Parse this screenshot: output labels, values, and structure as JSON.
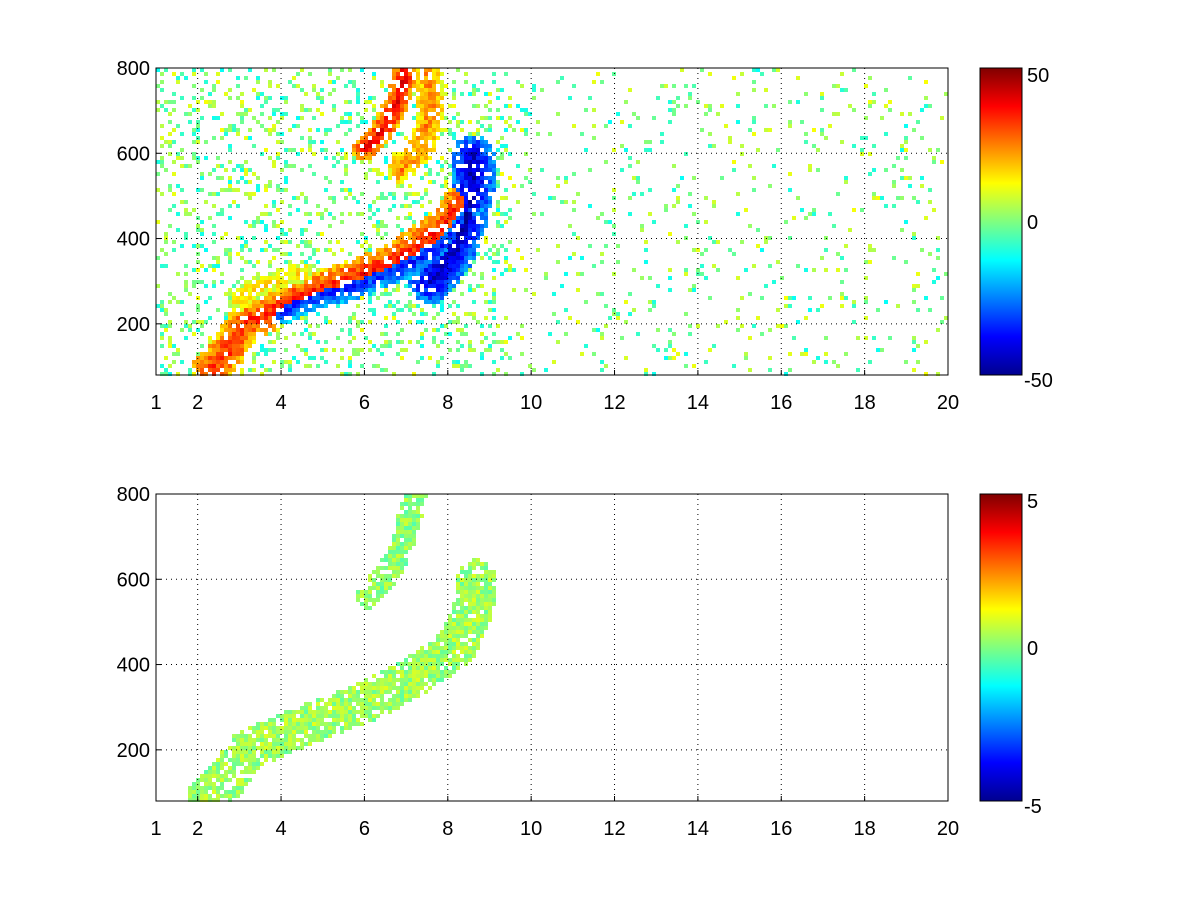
{
  "chart_data": [
    {
      "type": "heatmap",
      "colormap": "jet",
      "colorbar": {
        "range": [
          -50,
          50
        ],
        "ticks": [
          "50",
          "0",
          "-50"
        ]
      },
      "xlim": [
        1,
        20
      ],
      "ylim": [
        80,
        800
      ],
      "x_ticks": [
        "1",
        "2",
        "4",
        "6",
        "8",
        "10",
        "12",
        "14",
        "16",
        "18",
        "20"
      ],
      "y_ticks": [
        "200",
        "400",
        "600",
        "800"
      ],
      "grid": true,
      "features": [
        {
          "kind": "ridge",
          "points": [
            [
              2.3,
              95
            ],
            [
              2.7,
              130
            ],
            [
              3.1,
              200
            ],
            [
              3.6,
              220
            ],
            [
              4.2,
              255
            ],
            [
              5.0,
              285
            ],
            [
              5.8,
              310
            ],
            [
              6.5,
              340
            ],
            [
              7.2,
              380
            ],
            [
              7.8,
              420
            ],
            [
              8.3,
              480
            ]
          ],
          "value": 35,
          "width": 18
        },
        {
          "kind": "ridge",
          "points": [
            [
              4.0,
              230
            ],
            [
              4.8,
              265
            ],
            [
              5.6,
              285
            ],
            [
              6.4,
              315
            ],
            [
              7.2,
              345
            ],
            [
              7.8,
              380
            ],
            [
              8.2,
              420
            ],
            [
              8.5,
              470
            ]
          ],
          "value": -35,
          "width": 14
        },
        {
          "kind": "ridge",
          "points": [
            [
              7.6,
              300
            ],
            [
              8.1,
              360
            ],
            [
              8.4,
              440
            ],
            [
              8.6,
              520
            ],
            [
              8.6,
              590
            ]
          ],
          "value": -45,
          "width": 22
        },
        {
          "kind": "ridge",
          "points": [
            [
              6.9,
              560
            ],
            [
              7.4,
              620
            ],
            [
              7.6,
              700
            ],
            [
              7.5,
              800
            ]
          ],
          "value": 25,
          "width": 14
        },
        {
          "kind": "ridge",
          "points": [
            [
              6.0,
              610
            ],
            [
              6.4,
              650
            ],
            [
              6.8,
              720
            ],
            [
              7.0,
              800
            ]
          ],
          "value": 40,
          "width": 12
        },
        {
          "kind": "ridge",
          "points": [
            [
              3.0,
              250
            ],
            [
              3.3,
              280
            ],
            [
              3.8,
              300
            ],
            [
              4.5,
              320
            ]
          ],
          "value": 15,
          "width": 10
        }
      ]
    },
    {
      "type": "heatmap",
      "colormap": "jet",
      "colorbar": {
        "range": [
          -5,
          5
        ],
        "ticks": [
          "5",
          "0",
          "-5"
        ]
      },
      "xlim": [
        1,
        20
      ],
      "ylim": [
        80,
        800
      ],
      "x_ticks": [
        "1",
        "2",
        "4",
        "6",
        "8",
        "10",
        "12",
        "14",
        "16",
        "18",
        "20"
      ],
      "y_ticks": [
        "200",
        "400",
        "600",
        "800"
      ],
      "grid": true,
      "features": [
        {
          "kind": "ridge",
          "points": [
            [
              2.2,
              90
            ],
            [
              2.7,
              130
            ],
            [
              3.2,
              200
            ],
            [
              3.8,
              225
            ],
            [
              4.5,
              255
            ],
            [
              5.2,
              280
            ],
            [
              6.0,
              310
            ],
            [
              6.8,
              350
            ],
            [
              7.5,
              390
            ],
            [
              8.2,
              440
            ],
            [
              8.6,
              520
            ],
            [
              8.7,
              600
            ]
          ],
          "value": 0.4,
          "width": 20
        },
        {
          "kind": "ridge",
          "points": [
            [
              6.1,
              560
            ],
            [
              6.6,
              620
            ],
            [
              7.0,
              700
            ],
            [
              7.2,
              800
            ]
          ],
          "value": 0.2,
          "width": 12
        }
      ]
    }
  ]
}
